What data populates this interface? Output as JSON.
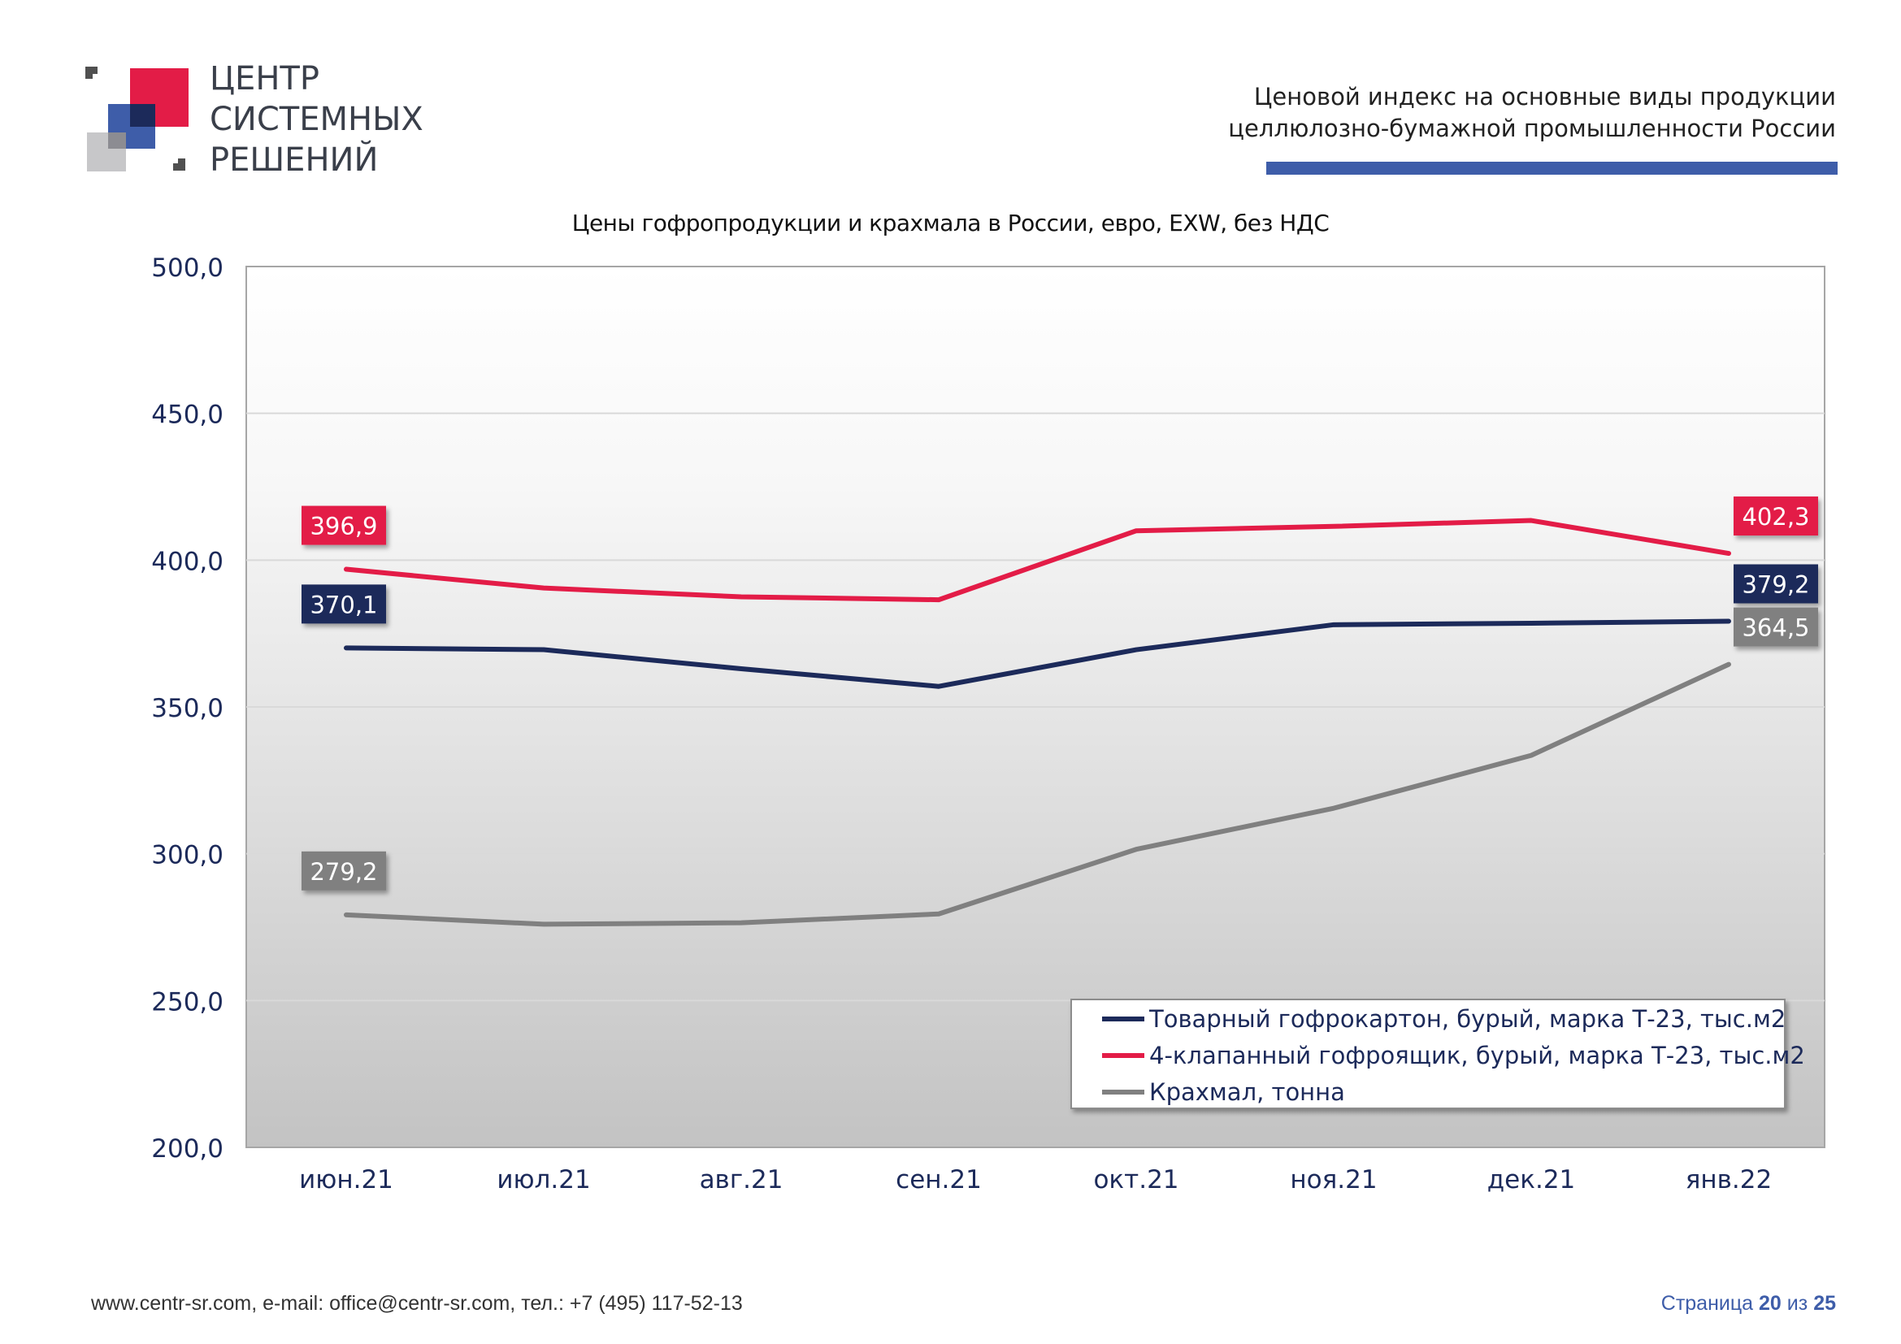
{
  "brand": {
    "name_lines": [
      "ЦЕНТР",
      "СИСТЕМНЫХ",
      "РЕШЕНИЙ"
    ],
    "colors": {
      "red": "#e31c47",
      "blue": "#3e5da9",
      "navy": "#1c2a5a",
      "gray": "#c7c7c9"
    }
  },
  "header": {
    "title_lines": [
      "Ценовой  индекс  на  основные виды продукции",
      "целлюлозно-бумажной промышленности России"
    ],
    "bar_color": "#3e5da9"
  },
  "chart_data": {
    "type": "line",
    "title": "Цены гофропродукции и крахмала в России, евро, EXW, без НДС",
    "categories": [
      "июн.21",
      "июл.21",
      "авг.21",
      "сен.21",
      "окт.21",
      "ноя.21",
      "дек.21",
      "янв.22"
    ],
    "ylim": [
      200,
      500
    ],
    "yticks": [
      "500,0",
      "450,0",
      "400,0",
      "350,0",
      "300,0",
      "250,0",
      "200,0"
    ],
    "ytick_values": [
      500,
      450,
      400,
      350,
      300,
      250,
      200
    ],
    "grid": true,
    "legend_position": "bottom-right",
    "series": [
      {
        "name": "Товарный гофрокартон, бурый, марка Т-23, тыс.м2",
        "color": "#1c2a5a",
        "values": [
          370.1,
          369.5,
          363.0,
          357.0,
          369.5,
          378.0,
          378.5,
          379.2
        ],
        "start_label": "370,1",
        "end_label": "379,2"
      },
      {
        "name": "4-клапанный гофроящик, бурый, марка Т-23, тыс.м2",
        "color": "#e31c47",
        "values": [
          396.9,
          390.5,
          387.5,
          386.5,
          410.0,
          411.5,
          413.5,
          402.3
        ],
        "start_label": "396,9",
        "end_label": "402,3"
      },
      {
        "name": "Крахмал, тонна",
        "color": "#808080",
        "values": [
          279.2,
          276.0,
          276.5,
          279.5,
          301.5,
          315.5,
          333.5,
          364.5
        ],
        "start_label": "279,2",
        "end_label": "364,5"
      }
    ]
  },
  "footer": {
    "contacts": "www.centr-sr.com, e-mail: office@centr-sr.com, тел.: +7 (495) 117-52-13",
    "page_prefix": "Страница",
    "page_current": "20",
    "page_sep": "из",
    "page_total": "25"
  }
}
